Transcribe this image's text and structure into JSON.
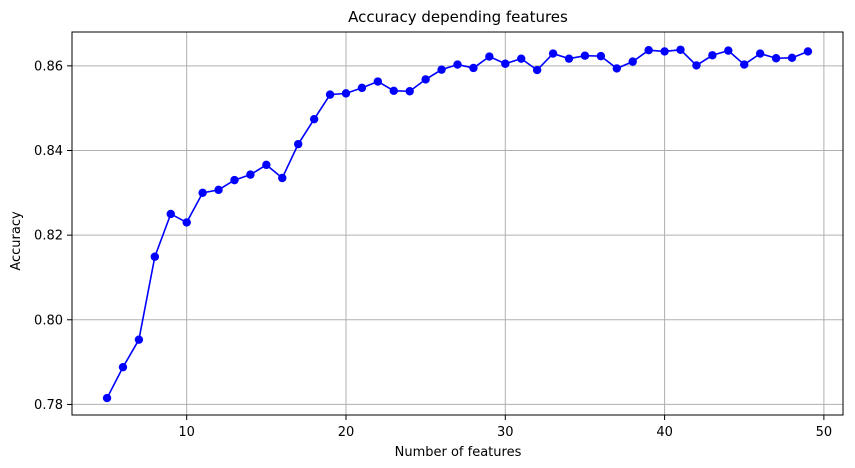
{
  "chart_data": {
    "type": "line",
    "title": "Accuracy depending features",
    "xlabel": "Number of features",
    "ylabel": "Accuracy",
    "xlim": [
      2.8,
      51.2
    ],
    "ylim": [
      0.7775,
      0.868
    ],
    "xticks": [
      10,
      20,
      30,
      40,
      50
    ],
    "yticks": [
      0.78,
      0.8,
      0.82,
      0.84,
      0.86
    ],
    "xtick_labels": [
      "10",
      "20",
      "30",
      "40",
      "50"
    ],
    "ytick_labels": [
      "0.78",
      "0.80",
      "0.82",
      "0.84",
      "0.86"
    ],
    "grid": true,
    "color": "#0000ff",
    "marker": "circle",
    "series": [
      {
        "x": [
          5,
          6,
          7,
          8,
          9,
          10,
          11,
          12,
          13,
          14,
          15,
          16,
          17,
          18,
          19,
          20,
          21,
          22,
          23,
          24,
          25,
          26,
          27,
          28,
          29,
          30,
          31,
          32,
          33,
          34,
          35,
          36,
          37,
          38,
          39,
          40,
          41,
          42,
          43,
          44,
          45,
          46,
          47,
          48,
          49
        ],
        "values": [
          0.7815,
          0.7888,
          0.7953,
          0.8149,
          0.825,
          0.823,
          0.83,
          0.8307,
          0.833,
          0.8343,
          0.8366,
          0.8335,
          0.8415,
          0.8474,
          0.8532,
          0.8535,
          0.8548,
          0.8563,
          0.8541,
          0.854,
          0.8568,
          0.8591,
          0.8603,
          0.8595,
          0.8622,
          0.8605,
          0.8617,
          0.859,
          0.8629,
          0.8617,
          0.8624,
          0.8623,
          0.8594,
          0.861,
          0.8637,
          0.8634,
          0.8638,
          0.8601,
          0.8625,
          0.8636,
          0.8603,
          0.8629,
          0.8618,
          0.8619,
          0.8634
        ]
      }
    ]
  }
}
